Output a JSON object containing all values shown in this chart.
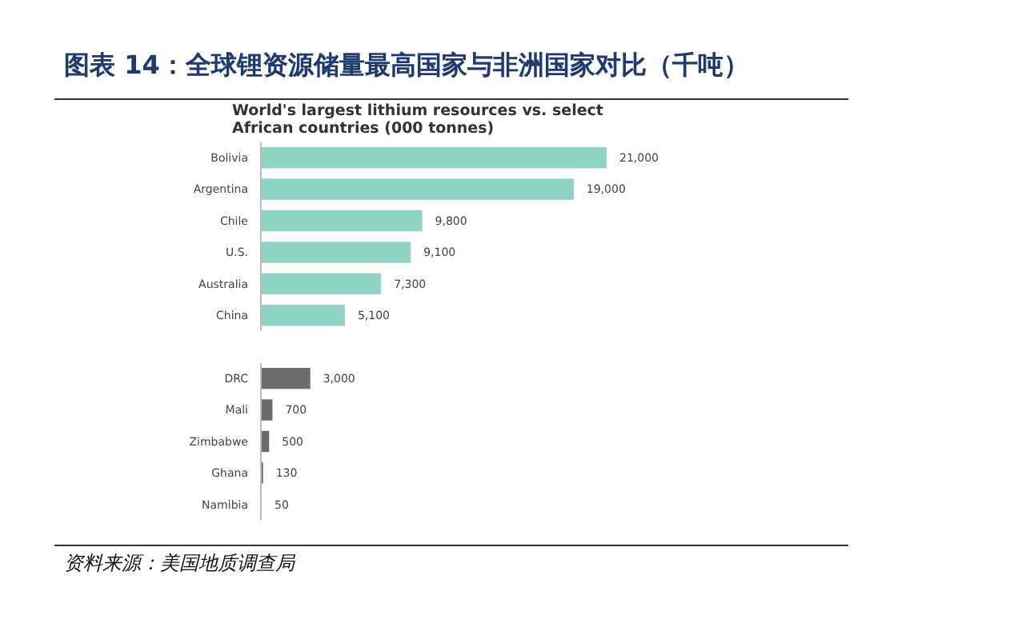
{
  "chart_data": {
    "type": "bar",
    "orientation": "horizontal",
    "title": "图表 14：全球锂资源储量最高国家与非洲国家对比（千吨）",
    "subtitle": "World's largest lithium resources vs. select African countries (000 tonnes)",
    "categories": [
      "Bolivia",
      "Argentina",
      "Chile",
      "U.S.",
      "Australia",
      "China",
      null,
      "DRC",
      "Mali",
      "Zimbabwe",
      "Ghana",
      "Namibia"
    ],
    "values": [
      21000,
      19000,
      9800,
      9100,
      7300,
      5100,
      null,
      3000,
      700,
      500,
      130,
      50
    ],
    "colors": [
      "#8fd3c4",
      "#8fd3c4",
      "#8fd3c4",
      "#8fd3c4",
      "#8fd3c4",
      "#8fd3c4",
      null,
      "#6b6b6b",
      "#6b6b6b",
      "#6b6b6b",
      "#6b6b6b",
      "#6b6b6b"
    ],
    "value_labels": [
      "21,000",
      "19,000",
      "9,800",
      "9,100",
      "7,300",
      "5,100",
      null,
      "3,000",
      "700",
      "500",
      "130",
      "50"
    ],
    "annotations": [
      "资料来源：美国地质调查局"
    ]
  }
}
